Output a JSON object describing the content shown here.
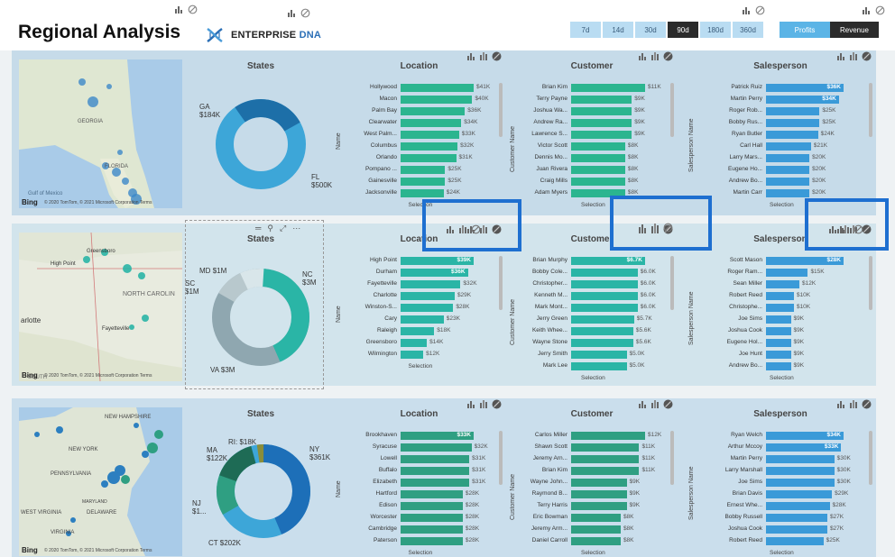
{
  "header": {
    "title": "Regional Analysis",
    "logo": {
      "word1": "ENTERPRISE",
      "word2": "DNA"
    },
    "periods": [
      "7d",
      "14d",
      "30d",
      "90d",
      "180d",
      "360d"
    ],
    "active_period": "90d",
    "metrics": [
      "Profits",
      "Revenue"
    ]
  },
  "colors": {
    "row1_bar": "#2bb58f",
    "row2_bar": "#2ab5a6",
    "row3_bar": "#2f9f82",
    "blue_bar": "#3a9ad8",
    "highlight": "#1e6fd0"
  },
  "rows": [
    {
      "map": {
        "bing": "Bing",
        "copyright": "© 2020 TomTom, © 2021 Microsoft Corporation Terms",
        "labels": [
          "GEORGIA",
          "Gulf of Mexico",
          "FLORIDA"
        ]
      },
      "states": {
        "title": "States",
        "labels": [
          {
            "name": "GA",
            "value": "$184K"
          },
          {
            "name": "FL",
            "value": "$500K"
          }
        ]
      },
      "location": {
        "title": "Location",
        "axis": "Name",
        "footer": "Selection",
        "items": [
          {
            "name": "Hollywood",
            "value": "$41K",
            "pct": 1.0
          },
          {
            "name": "Macon",
            "value": "$40K",
            "pct": 0.98
          },
          {
            "name": "Palm Bay",
            "value": "$36K",
            "pct": 0.88
          },
          {
            "name": "Clearwater",
            "value": "$34K",
            "pct": 0.83
          },
          {
            "name": "West Palm...",
            "value": "$33K",
            "pct": 0.8
          },
          {
            "name": "Columbus",
            "value": "$32K",
            "pct": 0.78
          },
          {
            "name": "Orlando",
            "value": "$31K",
            "pct": 0.76
          },
          {
            "name": "Pompano ...",
            "value": "$25K",
            "pct": 0.61
          },
          {
            "name": "Gainesville",
            "value": "$25K",
            "pct": 0.61
          },
          {
            "name": "Jacksonville",
            "value": "$24K",
            "pct": 0.59
          }
        ]
      },
      "customer": {
        "title": "Customer",
        "axis": "Customer Name",
        "footer": "Selection",
        "items": [
          {
            "name": "Brian Kim",
            "value": "$11K",
            "pct": 1.0
          },
          {
            "name": "Terry Payne",
            "value": "$9K",
            "pct": 0.82
          },
          {
            "name": "Joshua Wa...",
            "value": "$9K",
            "pct": 0.82
          },
          {
            "name": "Andrew Ra...",
            "value": "$9K",
            "pct": 0.82
          },
          {
            "name": "Lawrence S...",
            "value": "$9K",
            "pct": 0.82
          },
          {
            "name": "Victor Scott",
            "value": "$8K",
            "pct": 0.73
          },
          {
            "name": "Dennis Mo...",
            "value": "$8K",
            "pct": 0.73
          },
          {
            "name": "Juan Rivera",
            "value": "$8K",
            "pct": 0.73
          },
          {
            "name": "Craig Mills",
            "value": "$8K",
            "pct": 0.73
          },
          {
            "name": "Adam Myers",
            "value": "$8K",
            "pct": 0.73
          }
        ]
      },
      "salesperson": {
        "title": "Salesperson",
        "axis": "Salesperson Name",
        "footer": "Selection",
        "items": [
          {
            "name": "Patrick Ruiz",
            "value": "$36K",
            "pct": 1.0,
            "inside": true
          },
          {
            "name": "Martin Perry",
            "value": "$34K",
            "pct": 0.94,
            "inside": true
          },
          {
            "name": "Roger Rob...",
            "value": "$25K",
            "pct": 0.69
          },
          {
            "name": "Bobby Rus...",
            "value": "$25K",
            "pct": 0.69
          },
          {
            "name": "Ryan Butler",
            "value": "$24K",
            "pct": 0.67
          },
          {
            "name": "Carl Hall",
            "value": "$21K",
            "pct": 0.58
          },
          {
            "name": "Larry Mars...",
            "value": "$20K",
            "pct": 0.56
          },
          {
            "name": "Eugene Ho...",
            "value": "$20K",
            "pct": 0.56
          },
          {
            "name": "Andrew Bo...",
            "value": "$20K",
            "pct": 0.56
          },
          {
            "name": "Martin Carr",
            "value": "$20K",
            "pct": 0.56
          }
        ]
      }
    },
    {
      "map": {
        "bing": "Bing",
        "copyright": "© 2020 TomTom, © 2021 Microsoft Corporation Terms",
        "labels": [
          "Greensboro",
          "High Point",
          "NORTH CAROLIN",
          "Fayetteville",
          "arlotte",
          "SOUTH"
        ]
      },
      "states": {
        "title": "States",
        "labels": [
          {
            "name": "MD",
            "value": "$1M"
          },
          {
            "name": "SC",
            "value": "$1M"
          },
          {
            "name": "NC",
            "value": "$3M"
          },
          {
            "name": "VA",
            "value": "$3M"
          }
        ]
      },
      "location": {
        "title": "Location",
        "axis": "Name",
        "footer": "Selection",
        "items": [
          {
            "name": "High Point",
            "value": "$39K",
            "pct": 1.0,
            "inside": true
          },
          {
            "name": "Durham",
            "value": "$36K",
            "pct": 0.92,
            "inside": true
          },
          {
            "name": "Fayetteville",
            "value": "$32K",
            "pct": 0.82
          },
          {
            "name": "Charlotte",
            "value": "$29K",
            "pct": 0.74
          },
          {
            "name": "Winston-S...",
            "value": "$28K",
            "pct": 0.72
          },
          {
            "name": "Cary",
            "value": "$23K",
            "pct": 0.59
          },
          {
            "name": "Raleigh",
            "value": "$18K",
            "pct": 0.46
          },
          {
            "name": "Greensboro",
            "value": "$14K",
            "pct": 0.36
          },
          {
            "name": "Wilmington",
            "value": "$12K",
            "pct": 0.31
          }
        ]
      },
      "customer": {
        "title": "Customer",
        "axis": "Customer Name",
        "footer": "Selection",
        "items": [
          {
            "name": "Brian Murphy",
            "value": "$6.7K",
            "pct": 1.0,
            "inside": true
          },
          {
            "name": "Bobby Cole...",
            "value": "$6.0K",
            "pct": 0.9
          },
          {
            "name": "Christopher...",
            "value": "$6.0K",
            "pct": 0.9
          },
          {
            "name": "Kenneth M...",
            "value": "$6.0K",
            "pct": 0.9
          },
          {
            "name": "Mark Mont...",
            "value": "$6.0K",
            "pct": 0.9
          },
          {
            "name": "Jerry Green",
            "value": "$5.7K",
            "pct": 0.85
          },
          {
            "name": "Keith Whee...",
            "value": "$5.6K",
            "pct": 0.84
          },
          {
            "name": "Wayne Stone",
            "value": "$5.6K",
            "pct": 0.84
          },
          {
            "name": "Jerry Smith",
            "value": "$5.0K",
            "pct": 0.75
          },
          {
            "name": "Mark Lee",
            "value": "$5.0K",
            "pct": 0.75
          }
        ]
      },
      "salesperson": {
        "title": "Salesperson",
        "axis": "Salesperson Name",
        "footer": "Selection",
        "items": [
          {
            "name": "Scott Mason",
            "value": "$28K",
            "pct": 1.0,
            "inside": true
          },
          {
            "name": "Roger Ram...",
            "value": "$15K",
            "pct": 0.54
          },
          {
            "name": "Sean Miller",
            "value": "$12K",
            "pct": 0.43
          },
          {
            "name": "Robert Reed",
            "value": "$10K",
            "pct": 0.36
          },
          {
            "name": "Christophe...",
            "value": "$10K",
            "pct": 0.36
          },
          {
            "name": "Joe Sims",
            "value": "$9K",
            "pct": 0.32
          },
          {
            "name": "Joshua Cook",
            "value": "$9K",
            "pct": 0.32
          },
          {
            "name": "Eugene Hol...",
            "value": "$9K",
            "pct": 0.32
          },
          {
            "name": "Joe Hunt",
            "value": "$9K",
            "pct": 0.32
          },
          {
            "name": "Andrew Bo...",
            "value": "$9K",
            "pct": 0.32
          }
        ]
      }
    },
    {
      "map": {
        "bing": "Bing",
        "copyright": "© 2020 TomTom, © 2021 Microsoft Corporation Terms",
        "labels": [
          "NEW HAMPSHIRE",
          "NEW YORK",
          "PENNSYLVANIA",
          "WEST VIRGINIA",
          "VIRGINIA",
          "DELAWARE",
          "MARYLAND"
        ]
      },
      "states": {
        "title": "States",
        "labels": [
          {
            "name": "RI",
            "value": "$18K"
          },
          {
            "name": "MA",
            "value": "$122K"
          },
          {
            "name": "NY",
            "value": "$361K"
          },
          {
            "name": "NJ",
            "value": "$1..."
          },
          {
            "name": "CT",
            "value": "$202K"
          }
        ]
      },
      "location": {
        "title": "Location",
        "axis": "Name",
        "footer": "Selection",
        "items": [
          {
            "name": "Brookhaven",
            "value": "$33K",
            "pct": 1.0,
            "inside": true
          },
          {
            "name": "Syracuse",
            "value": "$32K",
            "pct": 0.97
          },
          {
            "name": "Lowell",
            "value": "$31K",
            "pct": 0.94
          },
          {
            "name": "Buffalo",
            "value": "$31K",
            "pct": 0.94
          },
          {
            "name": "Elizabeth",
            "value": "$31K",
            "pct": 0.94
          },
          {
            "name": "Hartford",
            "value": "$28K",
            "pct": 0.85
          },
          {
            "name": "Edison",
            "value": "$28K",
            "pct": 0.85
          },
          {
            "name": "Worcester",
            "value": "$28K",
            "pct": 0.85
          },
          {
            "name": "Cambridge",
            "value": "$28K",
            "pct": 0.85
          },
          {
            "name": "Paterson",
            "value": "$28K",
            "pct": 0.85
          }
        ]
      },
      "customer": {
        "title": "Customer",
        "axis": "Customer Name",
        "footer": "Selection",
        "items": [
          {
            "name": "Carlos Miller",
            "value": "$12K",
            "pct": 1.0
          },
          {
            "name": "Shawn Scott",
            "value": "$11K",
            "pct": 0.92
          },
          {
            "name": "Jeremy Arn...",
            "value": "$11K",
            "pct": 0.92
          },
          {
            "name": "Brian Kim",
            "value": "$11K",
            "pct": 0.92
          },
          {
            "name": "Wayne John...",
            "value": "$9K",
            "pct": 0.75
          },
          {
            "name": "Raymond B...",
            "value": "$9K",
            "pct": 0.75
          },
          {
            "name": "Terry Harris",
            "value": "$9K",
            "pct": 0.75
          },
          {
            "name": "Eric Bowman",
            "value": "$8K",
            "pct": 0.67
          },
          {
            "name": "Jeremy Arm...",
            "value": "$8K",
            "pct": 0.67
          },
          {
            "name": "Daniel Carroll",
            "value": "$8K",
            "pct": 0.67
          }
        ]
      },
      "salesperson": {
        "title": "Salesperson",
        "axis": "Salesperson Name",
        "footer": "Selection",
        "items": [
          {
            "name": "Ryan Welch",
            "value": "$34K",
            "pct": 1.0,
            "inside": true
          },
          {
            "name": "Arthur Mccoy",
            "value": "$33K",
            "pct": 0.97,
            "inside": true
          },
          {
            "name": "Martin Perry",
            "value": "$30K",
            "pct": 0.88
          },
          {
            "name": "Larry Marshall",
            "value": "$30K",
            "pct": 0.88
          },
          {
            "name": "Joe Sims",
            "value": "$30K",
            "pct": 0.88
          },
          {
            "name": "Brian Davis",
            "value": "$29K",
            "pct": 0.85
          },
          {
            "name": "Ernest Whe...",
            "value": "$28K",
            "pct": 0.82
          },
          {
            "name": "Bobby Russell",
            "value": "$27K",
            "pct": 0.79
          },
          {
            "name": "Joshua Cook",
            "value": "$27K",
            "pct": 0.79
          },
          {
            "name": "Robert Reed",
            "value": "$25K",
            "pct": 0.74
          }
        ]
      }
    }
  ]
}
